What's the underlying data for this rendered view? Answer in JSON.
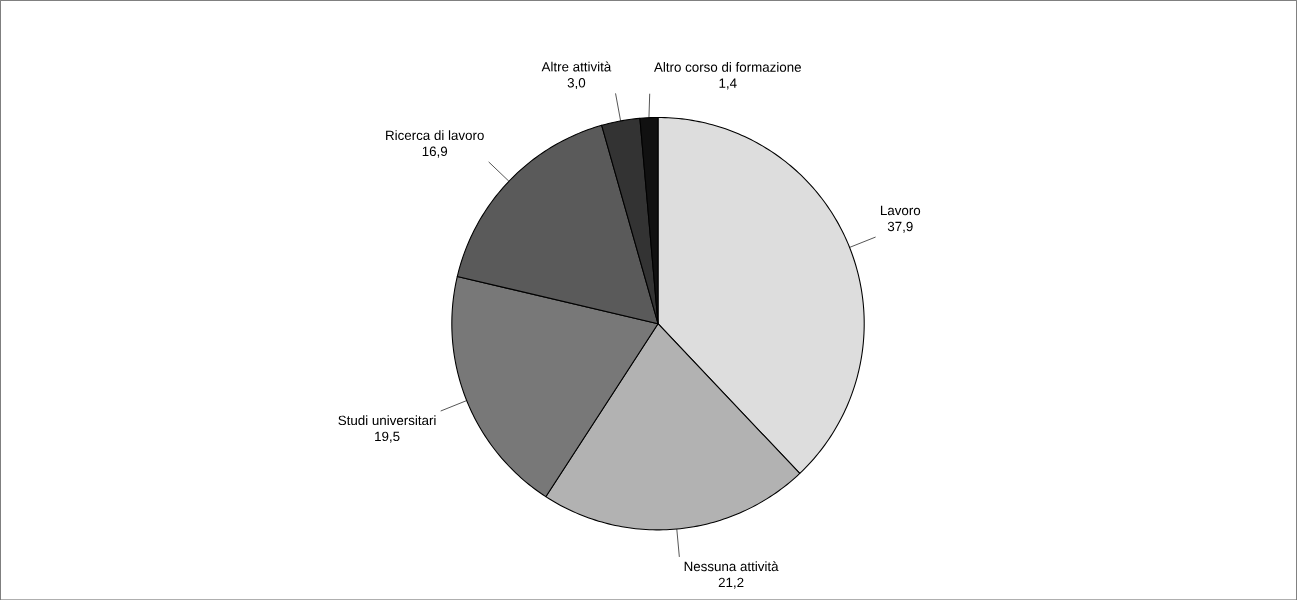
{
  "chart_data": {
    "type": "pie",
    "categories": [
      "Lavoro",
      "Nessuna attività",
      "Studi universitari",
      "Ricerca di lavoro",
      "Altre attività",
      "Altro corso di formazione"
    ],
    "values": [
      37.9,
      21.2,
      19.5,
      16.9,
      3.0,
      1.4
    ],
    "colors": [
      "#dddddd",
      "#b2b2b2",
      "#787878",
      "#5a5a5a",
      "#333333",
      "#111111"
    ],
    "value_labels": [
      "37,9",
      "21,2",
      "19,5",
      "16,9",
      "3,0",
      "1,4"
    ]
  }
}
